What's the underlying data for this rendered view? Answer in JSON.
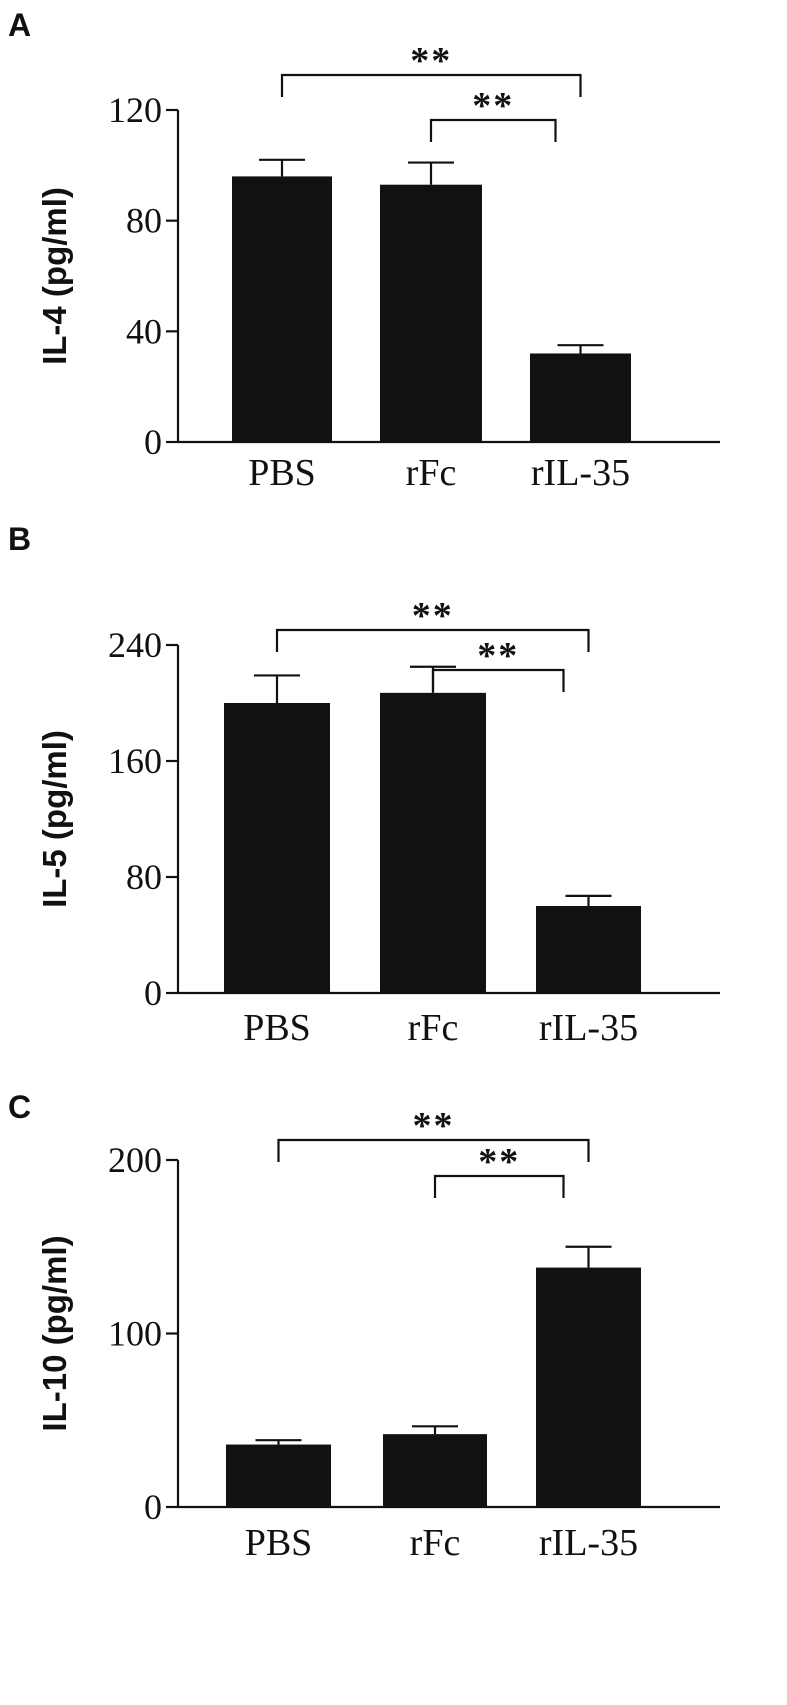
{
  "chart_data": [
    {
      "panel": "A",
      "type": "bar",
      "ylabel": "IL-4  (pg/ml)",
      "categories": [
        "PBS",
        "rFc",
        "rIL-35"
      ],
      "values": [
        96,
        93,
        32
      ],
      "errors": [
        6,
        8,
        3
      ],
      "ylim": [
        0,
        120
      ],
      "yticks": [
        0,
        40,
        80,
        120
      ],
      "significance": [
        {
          "from": 0,
          "to": 2,
          "label": "**",
          "level": 1
        },
        {
          "from": 1,
          "to": 2,
          "label": "**",
          "level": 0
        }
      ]
    },
    {
      "panel": "B",
      "type": "bar",
      "ylabel": "IL-5 (pg/ml)",
      "categories": [
        "PBS",
        "rFc",
        "rIL-35"
      ],
      "values": [
        200,
        207,
        60
      ],
      "errors": [
        19,
        18,
        7
      ],
      "ylim": [
        0,
        240
      ],
      "yticks": [
        0,
        80,
        160,
        240
      ],
      "significance": [
        {
          "from": 0,
          "to": 2,
          "label": "**",
          "level": 1
        },
        {
          "from": 1,
          "to": 2,
          "label": "**",
          "level": 0
        }
      ]
    },
    {
      "panel": "C",
      "type": "bar",
      "ylabel": "IL-10 (pg/ml)",
      "categories": [
        "PBS",
        "rFc",
        "rIL-35"
      ],
      "values": [
        36,
        42,
        138
      ],
      "errors": [
        2.5,
        4.5,
        12
      ],
      "ylim": [
        0,
        200
      ],
      "yticks": [
        0,
        100,
        200
      ],
      "significance": [
        {
          "from": 0,
          "to": 2,
          "label": "**",
          "level": 1
        },
        {
          "from": 1,
          "to": 2,
          "label": "**",
          "level": 0
        }
      ]
    }
  ]
}
